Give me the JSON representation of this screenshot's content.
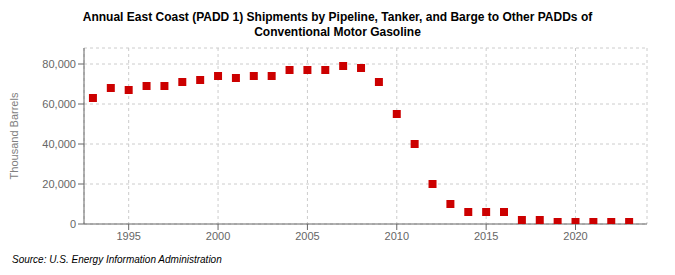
{
  "chart_data": {
    "type": "scatter",
    "title": "Annual East Coast (PADD 1) Shipments by Pipeline, Tanker, and Barge to Other PADDs of",
    "subtitle": "Conventional Motor Gasoline",
    "y_label": "Thousand Barrels",
    "annotations": [
      "Source: U.S. Energy Information Administration"
    ],
    "x": [
      1993,
      1994,
      1995,
      1996,
      1997,
      1998,
      1999,
      2000,
      2001,
      2002,
      2003,
      2004,
      2005,
      2006,
      2007,
      2008,
      2009,
      2010,
      2011,
      2012,
      2013,
      2014,
      2015,
      2016,
      2017,
      2018,
      2019,
      2020,
      2021,
      2022,
      2023
    ],
    "values": [
      63000,
      68000,
      67000,
      69000,
      69000,
      71000,
      72000,
      74000,
      73000,
      74000,
      74000,
      77000,
      77000,
      77000,
      79000,
      78000,
      71000,
      55000,
      40000,
      20000,
      10000,
      6000,
      6000,
      6000,
      2000,
      2000,
      1000,
      1000,
      1000,
      1000,
      1000
    ],
    "color": "#cc0000",
    "marker": "square",
    "xlim": [
      1992.5,
      2024
    ],
    "xticks": [
      1995,
      2000,
      2005,
      2010,
      2015,
      2020
    ],
    "ylim": [
      0,
      88000
    ],
    "yticks": [
      0,
      {
        "value": 20000,
        "label": "20,000"
      },
      {
        "value": 40000,
        "label": "40,000"
      },
      {
        "value": 60000,
        "label": "60,000"
      },
      {
        "value": 80000,
        "label": "80,000"
      }
    ],
    "grid": true
  }
}
